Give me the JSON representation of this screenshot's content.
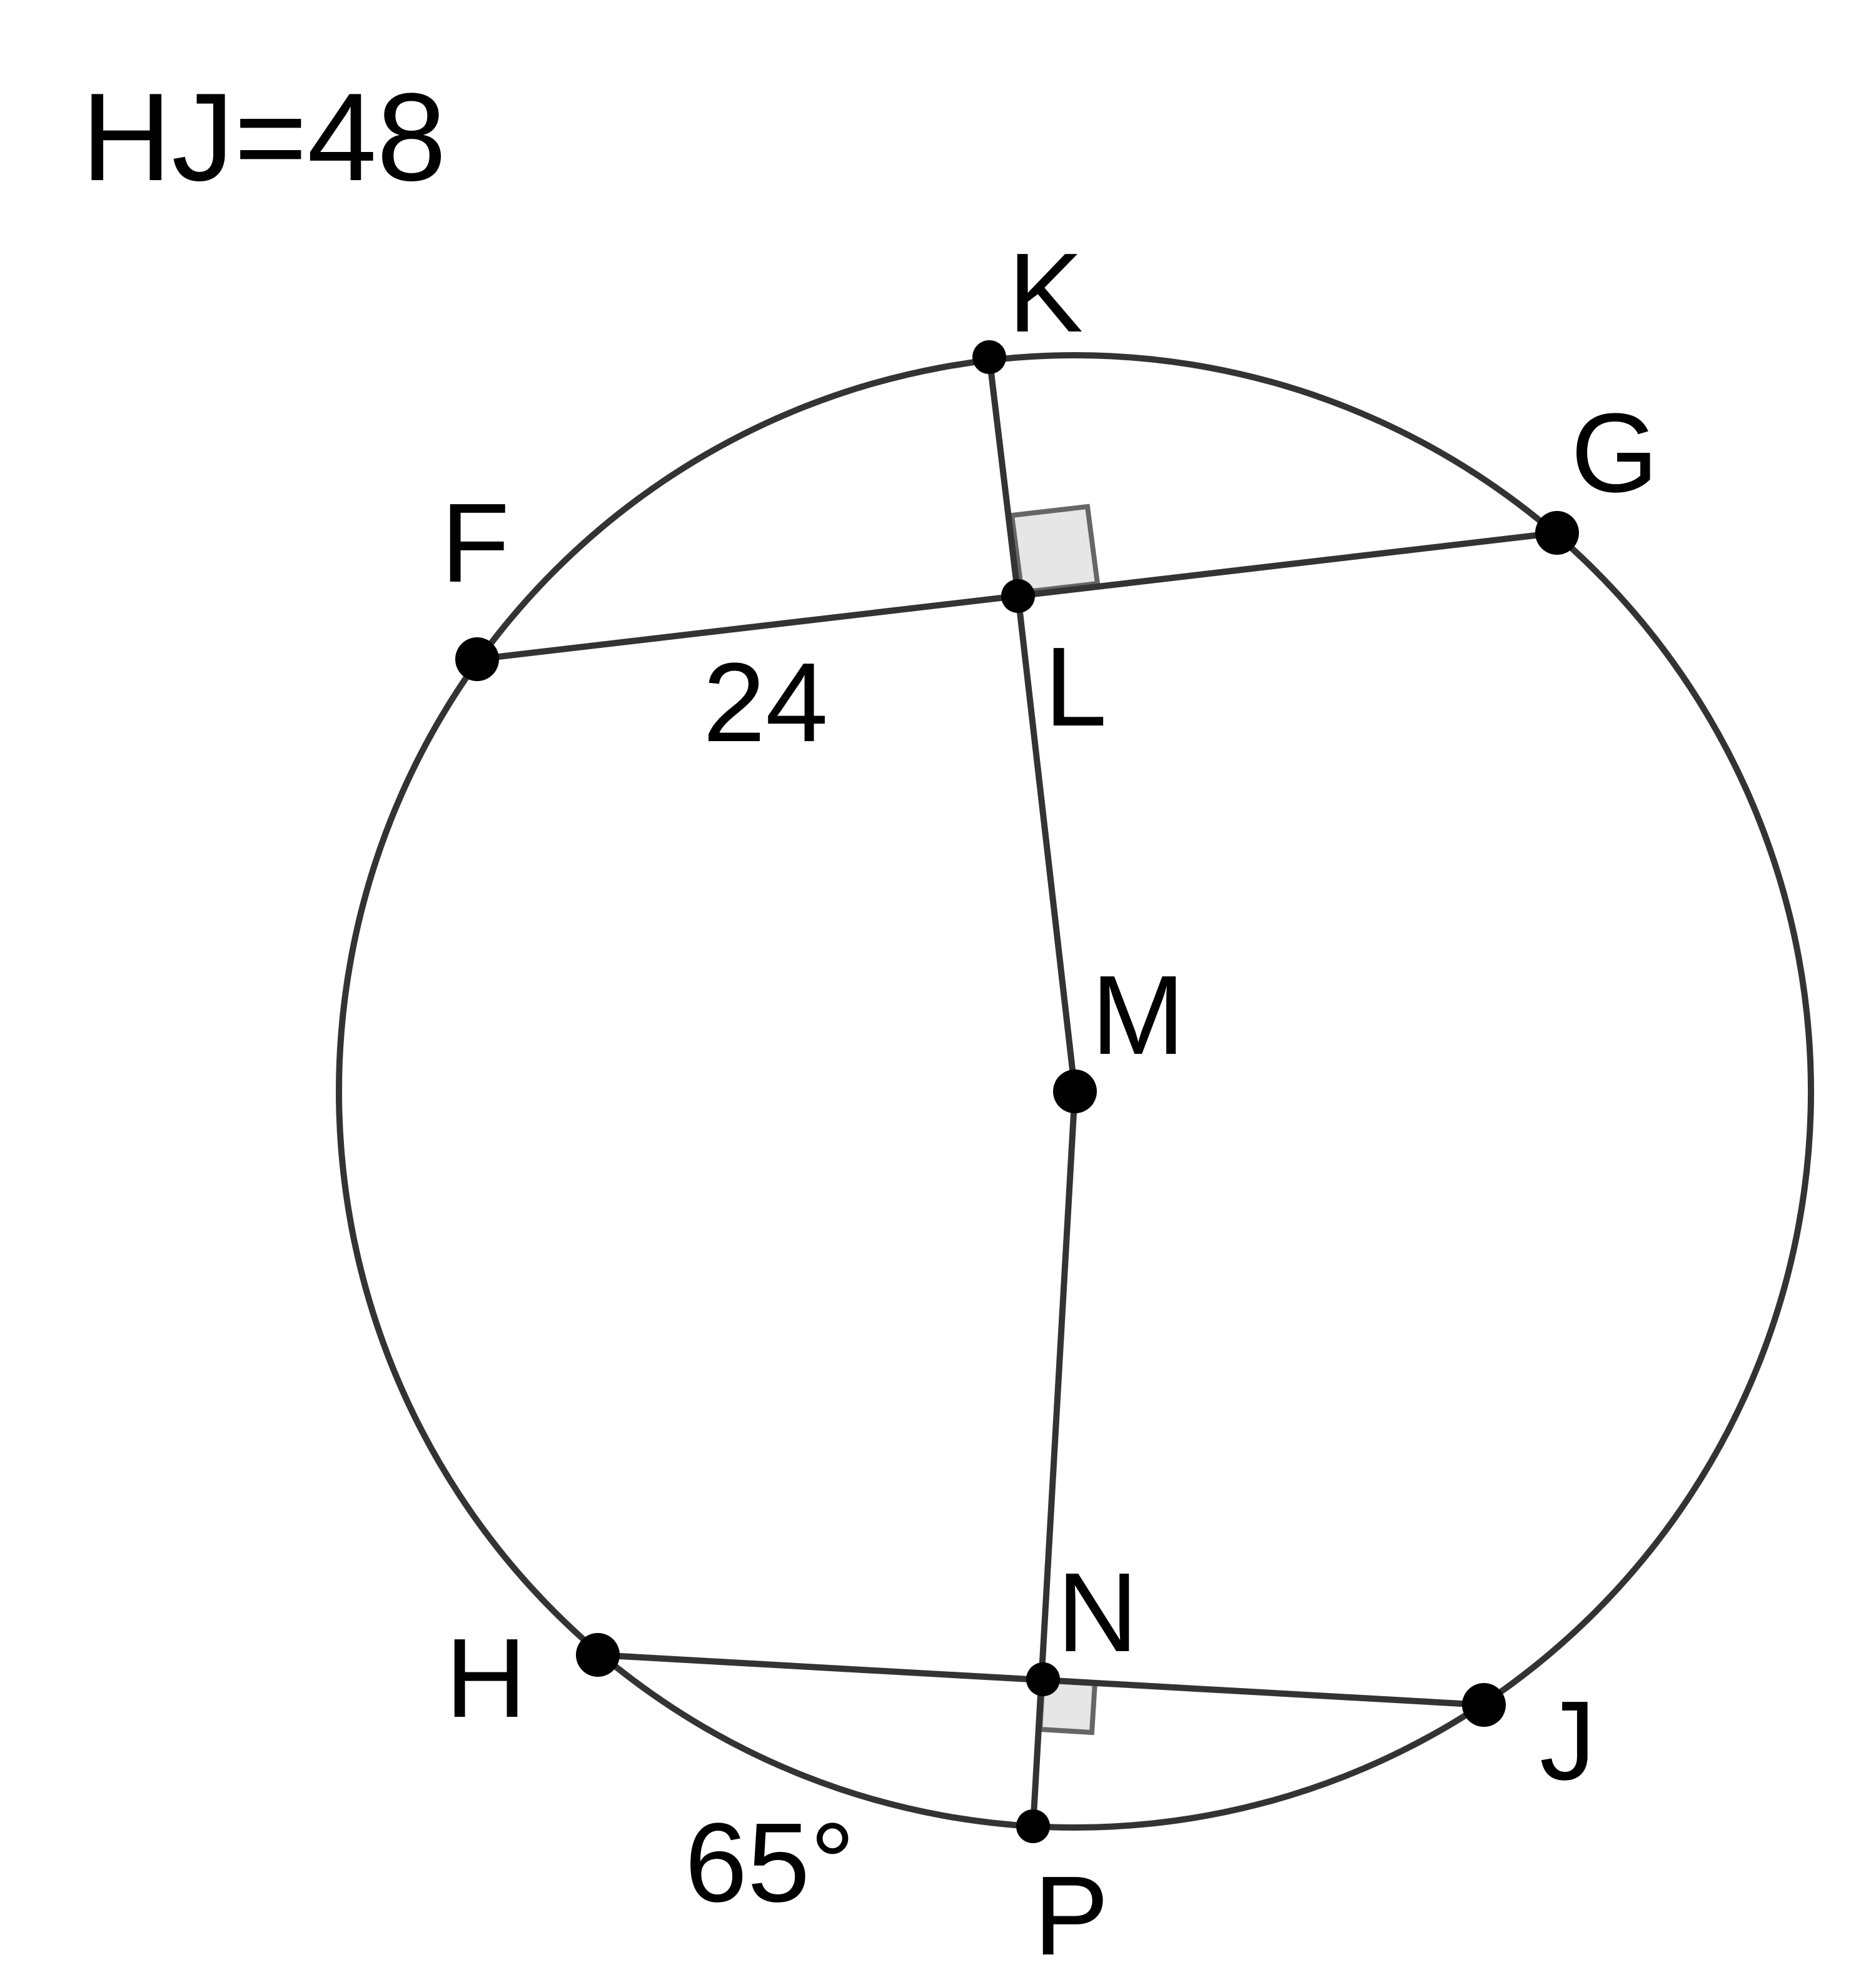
{
  "given": "HJ=48",
  "points": {
    "K": "K",
    "G": "G",
    "F": "F",
    "L": "L",
    "M": "M",
    "N": "N",
    "H": "H",
    "J": "J",
    "P": "P"
  },
  "measures": {
    "FL": "24",
    "arc_HP": "65°"
  }
}
